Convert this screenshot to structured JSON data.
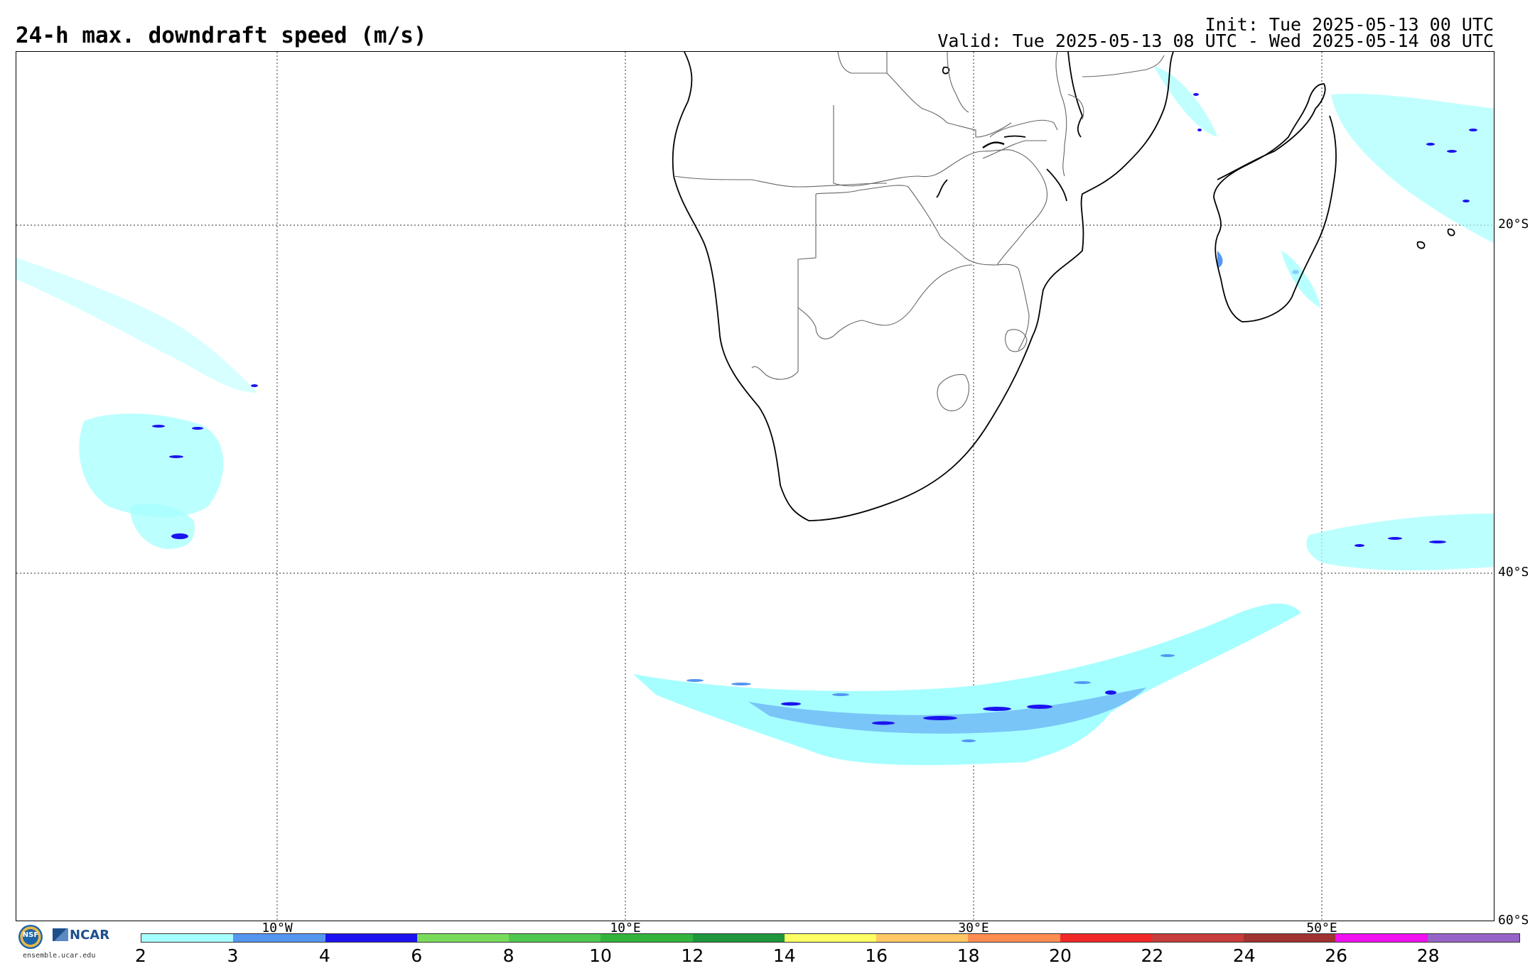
{
  "header": {
    "title": "24-h max. downdraft speed (m/s)",
    "init": "Init: Tue 2025-05-13 00 UTC",
    "valid": "Valid: Tue 2025-05-13 08 UTC - Wed 2025-05-14 08 UTC"
  },
  "map": {
    "lat_labels": [
      "20°S",
      "40°S",
      "60°S"
    ],
    "lon_labels": [
      "10°W",
      "10°E",
      "30°E",
      "50°E"
    ]
  },
  "colorbar": {
    "ticks": [
      "2",
      "3",
      "4",
      "6",
      "8",
      "10",
      "12",
      "14",
      "16",
      "18",
      "20",
      "22",
      "24",
      "26",
      "28"
    ],
    "colors": [
      "#a6ffff",
      "#5496f0",
      "#1c12f0",
      "#78dc5a",
      "#50c850",
      "#32b43c",
      "#1e963c",
      "#ffff64",
      "#ffc864",
      "#ff8c50",
      "#f02828",
      "#c83c3c",
      "#a03232",
      "#f010f0",
      "#9664c8"
    ]
  },
  "logos": {
    "nsf_icon": "nsf-logo-icon",
    "nsf": "NSF",
    "ncar": "NCAR",
    "url": "ensemble.ucar.edu"
  }
}
